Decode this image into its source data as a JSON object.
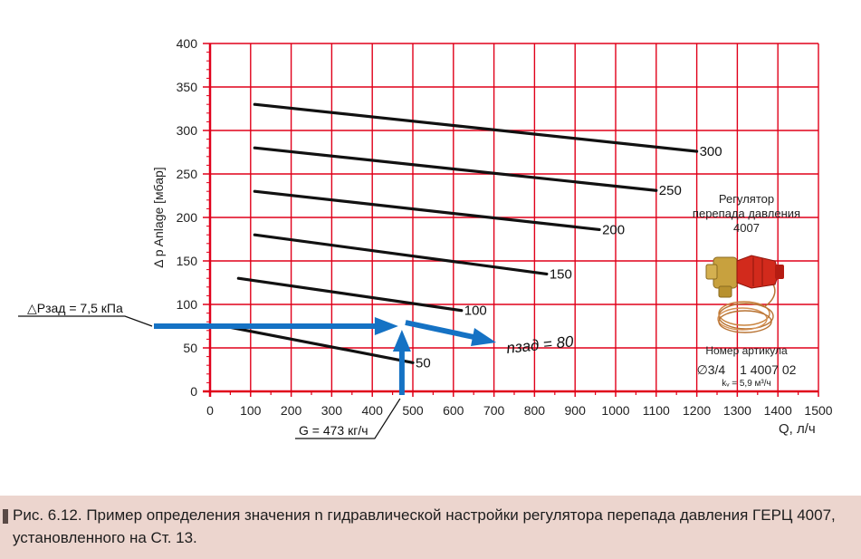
{
  "caption": {
    "text": "Рис. 6.12. Пример определения значения n гидравлической настройки регулятора перепада давления ГЕРЦ 4007, установленного на Ст. 13."
  },
  "product": {
    "title_lines": [
      "Регулятор",
      "перепада давления",
      "4007"
    ],
    "article_label": "Номер артикула",
    "size": "∅3/4",
    "article_number": "1 4007 02",
    "kv": "kᵥ = 5,9 м³/ч",
    "image_icon": "pressure-regulator-valve-icon"
  },
  "annotations": {
    "dp_set": "△Рзад = 7,5 кПа",
    "g_value": "G = 473 кг/ч",
    "n_set": "nзад = 80"
  },
  "colors": {
    "grid": "#e0001a",
    "curve": "#111111",
    "arrow": "#1572c4",
    "caption_bg": "#ecd5ce"
  },
  "chart_data": {
    "type": "line",
    "title": "",
    "xlabel": "Q, л/ч",
    "ylabel": "Δ p Anlage  [мбар]",
    "xlim": [
      0,
      1500
    ],
    "ylim": [
      0,
      400
    ],
    "x_ticks": [
      0,
      100,
      200,
      300,
      400,
      500,
      600,
      700,
      800,
      900,
      1000,
      1100,
      1200,
      1300,
      1400,
      1500
    ],
    "y_ticks": [
      0,
      50,
      100,
      150,
      200,
      250,
      300,
      350,
      400
    ],
    "grid": true,
    "series": [
      {
        "name": "50",
        "x": [
          35,
          500
        ],
        "y": [
          75,
          33
        ]
      },
      {
        "name": "100",
        "x": [
          70,
          620
        ],
        "y": [
          130,
          93
        ]
      },
      {
        "name": "150",
        "x": [
          110,
          830
        ],
        "y": [
          180,
          135
        ]
      },
      {
        "name": "200",
        "x": [
          110,
          960
        ],
        "y": [
          230,
          186
        ]
      },
      {
        "name": "250",
        "x": [
          110,
          1100
        ],
        "y": [
          280,
          231
        ]
      },
      {
        "name": "300",
        "x": [
          110,
          1200
        ],
        "y": [
          330,
          276
        ]
      }
    ],
    "annotation_points": {
      "dp_set_mbar": 75,
      "g_flow": 473
    }
  }
}
